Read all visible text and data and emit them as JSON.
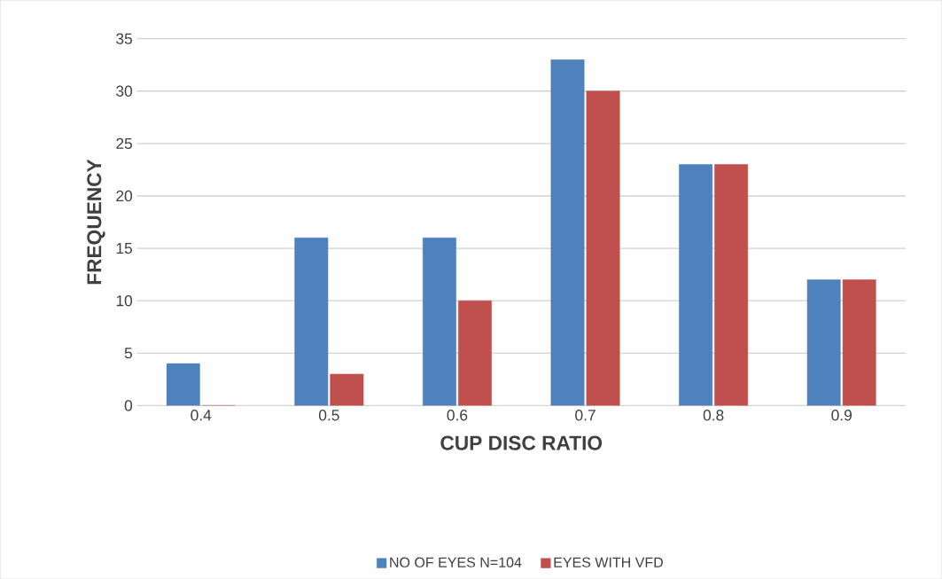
{
  "chart_data": {
    "type": "bar",
    "xlabel": "CUP DISC RATIO",
    "ylabel": "FREQUENCY",
    "categories": [
      "0.4",
      "0.5",
      "0.6",
      "0.7",
      "0.8",
      "0.9"
    ],
    "series": [
      {
        "name": "NO OF EYES N=104",
        "color": "#4f81bd",
        "values": [
          4,
          16,
          16,
          33,
          23,
          12
        ]
      },
      {
        "name": "EYES WITH VFD",
        "color": "#c0504d",
        "values": [
          0,
          3,
          10,
          30,
          23,
          12
        ]
      }
    ],
    "ylim": [
      0,
      35
    ],
    "yticks": [
      0,
      5,
      10,
      15,
      20,
      25,
      30,
      35
    ],
    "grid": "y",
    "legend": "bottom"
  }
}
